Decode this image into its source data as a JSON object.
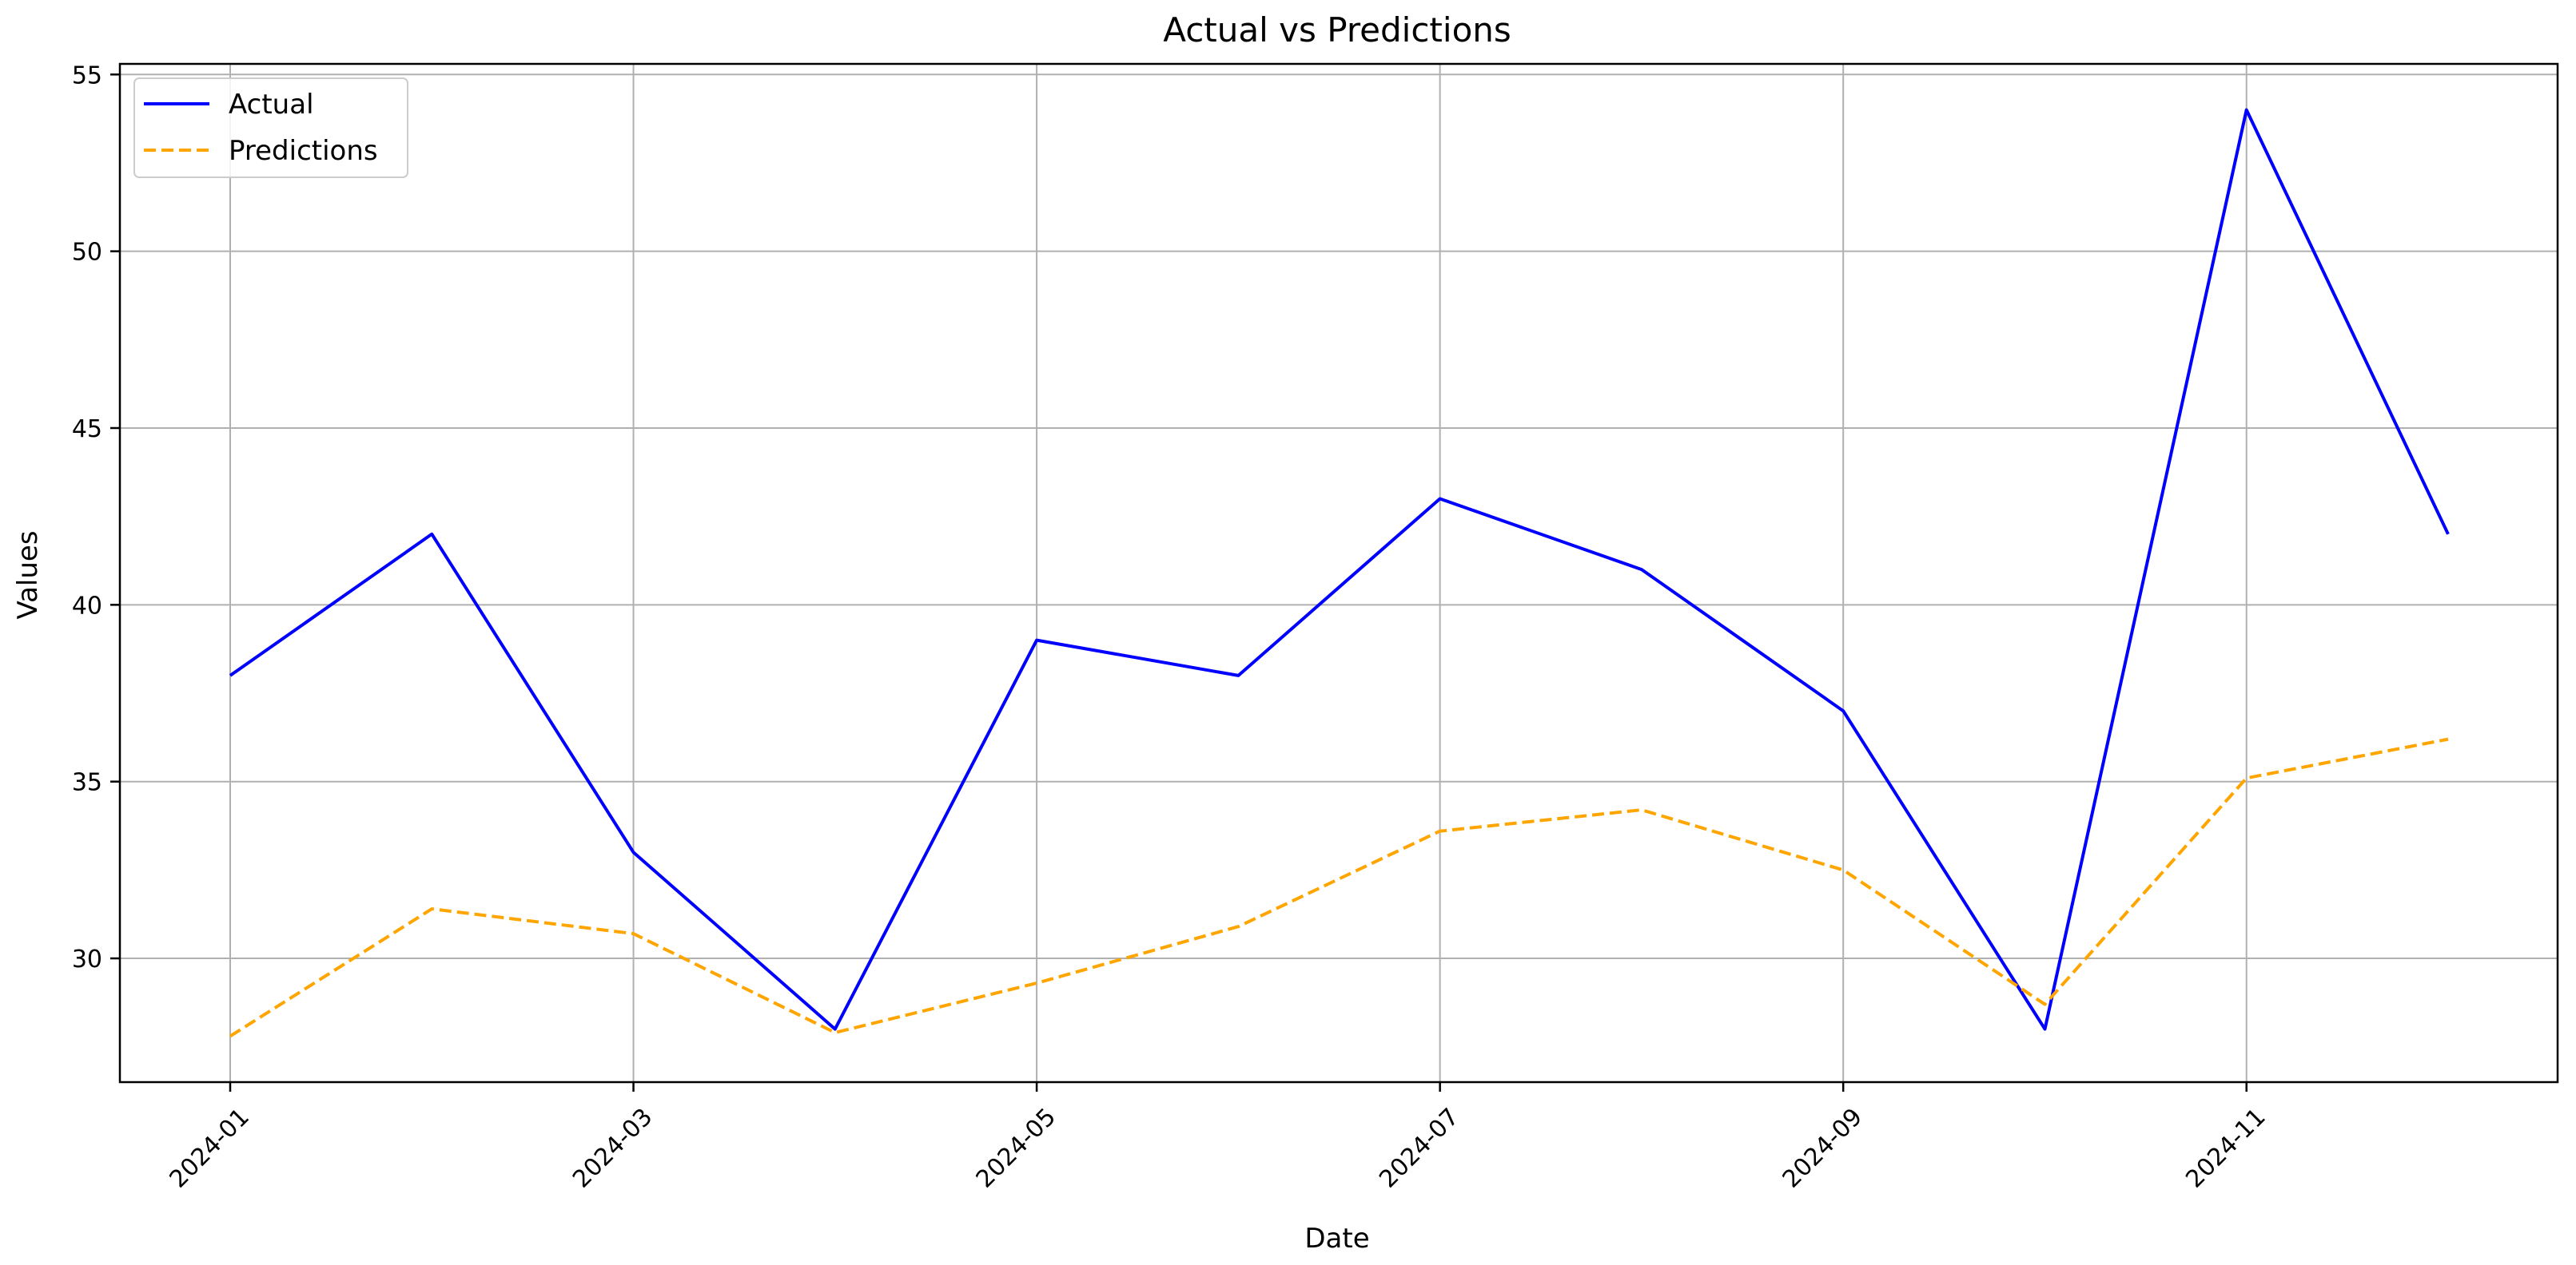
{
  "chart_data": {
    "type": "line",
    "title": "Actual vs Predictions",
    "xlabel": "Date",
    "ylabel": "Values",
    "x": [
      "2024-01",
      "2024-02",
      "2024-03",
      "2024-04",
      "2024-05",
      "2024-06",
      "2024-07",
      "2024-08",
      "2024-09",
      "2024-10",
      "2024-11",
      "2024-12"
    ],
    "xticks": [
      "2024-01",
      "2024-03",
      "2024-05",
      "2024-07",
      "2024-09",
      "2024-11"
    ],
    "ylim": [
      26.5,
      55.3
    ],
    "yticks": [
      30,
      35,
      40,
      45,
      50,
      55
    ],
    "grid": true,
    "legend": "top-left",
    "series": [
      {
        "name": "Actual",
        "color": "#0000ff",
        "style": "solid",
        "values": [
          38,
          42,
          33,
          28,
          39,
          38,
          43,
          41,
          37,
          28,
          54,
          42
        ]
      },
      {
        "name": "Predictions",
        "color": "#ffa500",
        "style": "dashed",
        "values": [
          27.8,
          31.4,
          30.7,
          27.9,
          29.3,
          30.9,
          33.6,
          34.2,
          32.5,
          28.7,
          35.1,
          36.2
        ]
      }
    ]
  }
}
